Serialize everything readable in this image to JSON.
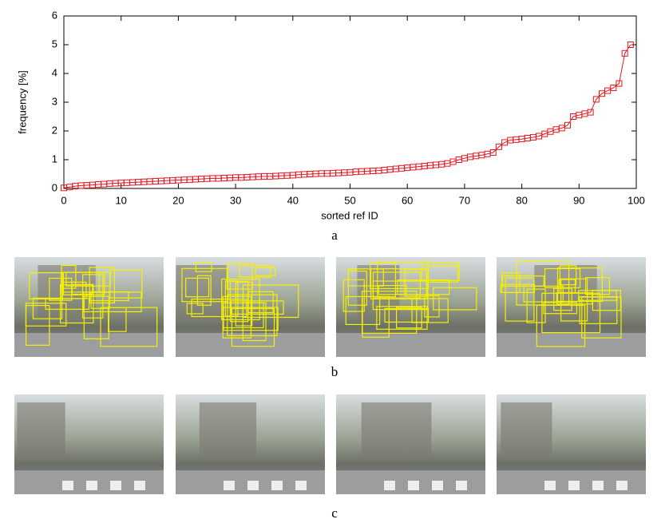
{
  "chart_data": {
    "type": "line",
    "xlabel": "sorted ref ID",
    "ylabel": "frequency [%]",
    "x": [
      0,
      1,
      2,
      3,
      4,
      5,
      6,
      7,
      8,
      9,
      10,
      11,
      12,
      13,
      14,
      15,
      16,
      17,
      18,
      19,
      20,
      21,
      22,
      23,
      24,
      25,
      26,
      27,
      28,
      29,
      30,
      31,
      32,
      33,
      34,
      35,
      36,
      37,
      38,
      39,
      40,
      41,
      42,
      43,
      44,
      45,
      46,
      47,
      48,
      49,
      50,
      51,
      52,
      53,
      54,
      55,
      56,
      57,
      58,
      59,
      60,
      61,
      62,
      63,
      64,
      65,
      66,
      67,
      68,
      69,
      70,
      71,
      72,
      73,
      74,
      75,
      76,
      77,
      78,
      79,
      80,
      81,
      82,
      83,
      84,
      85,
      86,
      87,
      88,
      89,
      90,
      91,
      92,
      93,
      94,
      95,
      96,
      97,
      98,
      99
    ],
    "values": [
      0.02,
      0.05,
      0.08,
      0.1,
      0.11,
      0.12,
      0.14,
      0.15,
      0.17,
      0.18,
      0.19,
      0.2,
      0.21,
      0.22,
      0.23,
      0.24,
      0.25,
      0.26,
      0.27,
      0.28,
      0.29,
      0.3,
      0.31,
      0.32,
      0.33,
      0.34,
      0.35,
      0.35,
      0.36,
      0.37,
      0.38,
      0.38,
      0.39,
      0.4,
      0.41,
      0.42,
      0.42,
      0.43,
      0.44,
      0.45,
      0.46,
      0.48,
      0.49,
      0.5,
      0.51,
      0.52,
      0.52,
      0.53,
      0.54,
      0.55,
      0.56,
      0.58,
      0.59,
      0.6,
      0.61,
      0.62,
      0.64,
      0.66,
      0.68,
      0.7,
      0.72,
      0.74,
      0.76,
      0.78,
      0.8,
      0.82,
      0.84,
      0.87,
      0.93,
      1.0,
      1.05,
      1.1,
      1.13,
      1.16,
      1.2,
      1.25,
      1.45,
      1.6,
      1.68,
      1.7,
      1.72,
      1.75,
      1.78,
      1.82,
      1.9,
      1.98,
      2.05,
      2.1,
      2.2,
      2.5,
      2.55,
      2.6,
      2.65,
      3.1,
      3.3,
      3.4,
      3.5,
      3.65,
      4.7,
      5.0
    ],
    "color": "#e8141c",
    "marker": "square",
    "xlim": [
      0,
      100
    ],
    "xticks": [
      0,
      10,
      20,
      30,
      40,
      50,
      60,
      70,
      80,
      90,
      100
    ],
    "ylim": [
      0,
      6
    ],
    "yticks": [
      0,
      1,
      2,
      3,
      4,
      5,
      6
    ]
  },
  "captions": [
    "a",
    "b",
    "c"
  ]
}
